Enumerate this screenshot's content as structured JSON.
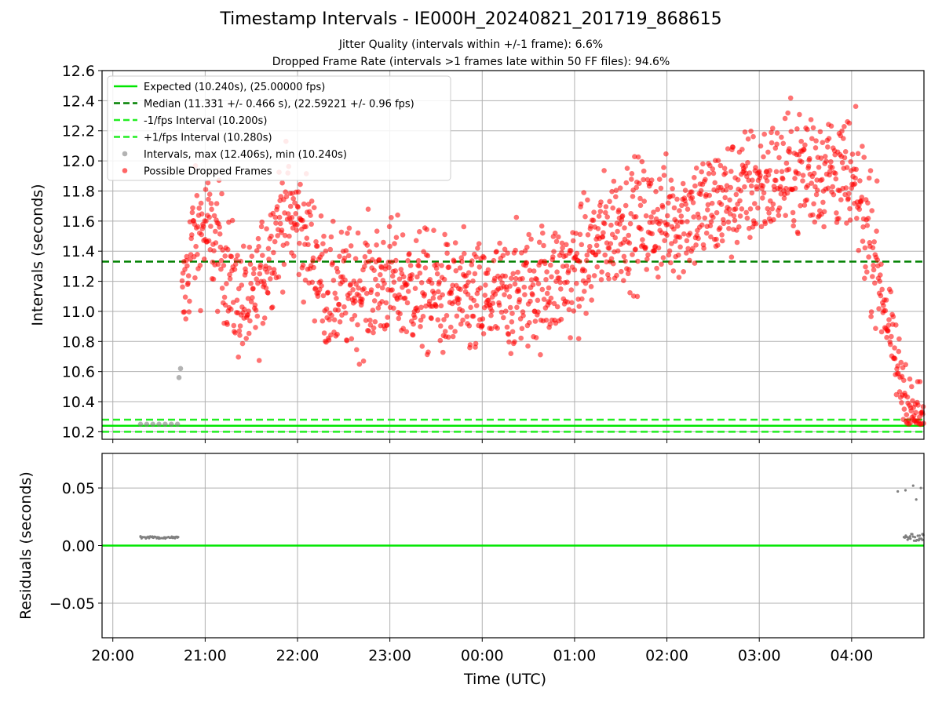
{
  "title": "Timestamp Intervals - IE000H_20240821_201719_868615",
  "subtitle1": "Jitter Quality (intervals within +/-1 frame): 6.6%",
  "subtitle2": "Dropped Frame Rate (intervals >1 frames late within 50 FF files): 94.6%",
  "colors": {
    "expected": "#00e600",
    "median": "#008000",
    "fps_band": "#22ee22",
    "intervals": "#808080",
    "dropped": "#ff0000",
    "grid": "#b0b0b0"
  },
  "chart_data": [
    {
      "type": "scatter",
      "name": "top",
      "ylabel": "Intervals (seconds)",
      "xlabel": "",
      "xlim": [
        "19:53",
        "04:47"
      ],
      "ylim": [
        10.15,
        12.6
      ],
      "yticks": [
        "10.2",
        "10.4",
        "10.6",
        "10.8",
        "11.0",
        "11.2",
        "11.4",
        "11.6",
        "11.8",
        "12.0",
        "12.2",
        "12.4",
        "12.6"
      ],
      "grid": true,
      "legend_position": "upper left",
      "legend": [
        "Expected (10.240s), (25.00000 fps)",
        "Median (11.331 +/- 0.466 s), (22.59221 +/- 0.96 fps)",
        "-1/fps Interval (10.200s)",
        "+1/fps Interval (10.280s)",
        "Intervals, max (12.406s), min (10.240s)",
        "Possible Dropped Frames"
      ],
      "hlines": [
        {
          "y": 10.24,
          "style": "solid",
          "label": "Expected"
        },
        {
          "y": 11.331,
          "style": "dashed",
          "label": "Median"
        },
        {
          "y": 10.2,
          "style": "dashed",
          "label": "-1/fps"
        },
        {
          "y": 10.28,
          "style": "dashed",
          "label": "+1/fps"
        }
      ],
      "normal_intervals": [
        {
          "x": "20:18",
          "y": 10.25
        },
        {
          "x": "20:22",
          "y": 10.25
        },
        {
          "x": "20:26",
          "y": 10.25
        },
        {
          "x": "20:30",
          "y": 10.25
        },
        {
          "x": "20:34",
          "y": 10.25
        },
        {
          "x": "20:38",
          "y": 10.25
        },
        {
          "x": "20:42",
          "y": 10.25
        },
        {
          "x": "20:43",
          "y": 10.56
        },
        {
          "x": "20:44",
          "y": 10.62
        }
      ],
      "dropped_trend": [
        {
          "x": "20:45",
          "y": 11.0
        },
        {
          "x": "20:52",
          "y": 11.5
        },
        {
          "x": "21:00",
          "y": 11.55
        },
        {
          "x": "21:10",
          "y": 11.4
        },
        {
          "x": "21:20",
          "y": 11.1
        },
        {
          "x": "21:30",
          "y": 11.0
        },
        {
          "x": "21:40",
          "y": 11.35
        },
        {
          "x": "21:50",
          "y": 11.65
        },
        {
          "x": "22:00",
          "y": 11.6
        },
        {
          "x": "22:10",
          "y": 11.4
        },
        {
          "x": "22:20",
          "y": 11.1
        },
        {
          "x": "22:40",
          "y": 11.15
        },
        {
          "x": "23:00",
          "y": 11.2
        },
        {
          "x": "23:30",
          "y": 11.1
        },
        {
          "x": "00:00",
          "y": 11.05
        },
        {
          "x": "00:30",
          "y": 11.15
        },
        {
          "x": "01:00",
          "y": 11.25
        },
        {
          "x": "01:15",
          "y": 11.45
        },
        {
          "x": "01:30",
          "y": 11.6
        },
        {
          "x": "02:00",
          "y": 11.6
        },
        {
          "x": "02:30",
          "y": 11.7
        },
        {
          "x": "03:00",
          "y": 11.85
        },
        {
          "x": "03:30",
          "y": 11.95
        },
        {
          "x": "03:50",
          "y": 11.95
        },
        {
          "x": "04:05",
          "y": 11.75
        },
        {
          "x": "04:15",
          "y": 11.4
        },
        {
          "x": "04:22",
          "y": 11.0
        },
        {
          "x": "04:30",
          "y": 10.6
        },
        {
          "x": "04:40",
          "y": 10.3
        },
        {
          "x": "04:47",
          "y": 10.25
        }
      ]
    },
    {
      "type": "scatter",
      "name": "residuals",
      "ylabel": "Residuals (seconds)",
      "xlabel": "Time (UTC)",
      "xlim": [
        "19:53",
        "04:47"
      ],
      "ylim": [
        -0.08,
        0.08
      ],
      "yticks": [
        "0.05",
        "0.00",
        "−0.05"
      ],
      "xticks": [
        "20:00",
        "21:00",
        "22:00",
        "23:00",
        "00:00",
        "01:00",
        "02:00",
        "03:00",
        "04:00"
      ],
      "grid": true,
      "zero_line": 0.0,
      "points": [
        {
          "x": "20:18",
          "y": 0.008
        },
        {
          "x": "20:22",
          "y": 0.007
        },
        {
          "x": "20:26",
          "y": 0.007
        },
        {
          "x": "20:30",
          "y": 0.007
        },
        {
          "x": "20:34",
          "y": 0.007
        },
        {
          "x": "20:38",
          "y": 0.007
        },
        {
          "x": "20:42",
          "y": 0.007
        },
        {
          "x": "04:30",
          "y": 0.047
        },
        {
          "x": "04:35",
          "y": 0.048
        },
        {
          "x": "04:40",
          "y": 0.052
        },
        {
          "x": "04:45",
          "y": 0.05
        },
        {
          "x": "04:42",
          "y": 0.04
        },
        {
          "x": "04:38",
          "y": 0.008
        },
        {
          "x": "04:44",
          "y": 0.006
        },
        {
          "x": "04:46",
          "y": 0.01
        }
      ]
    }
  ]
}
